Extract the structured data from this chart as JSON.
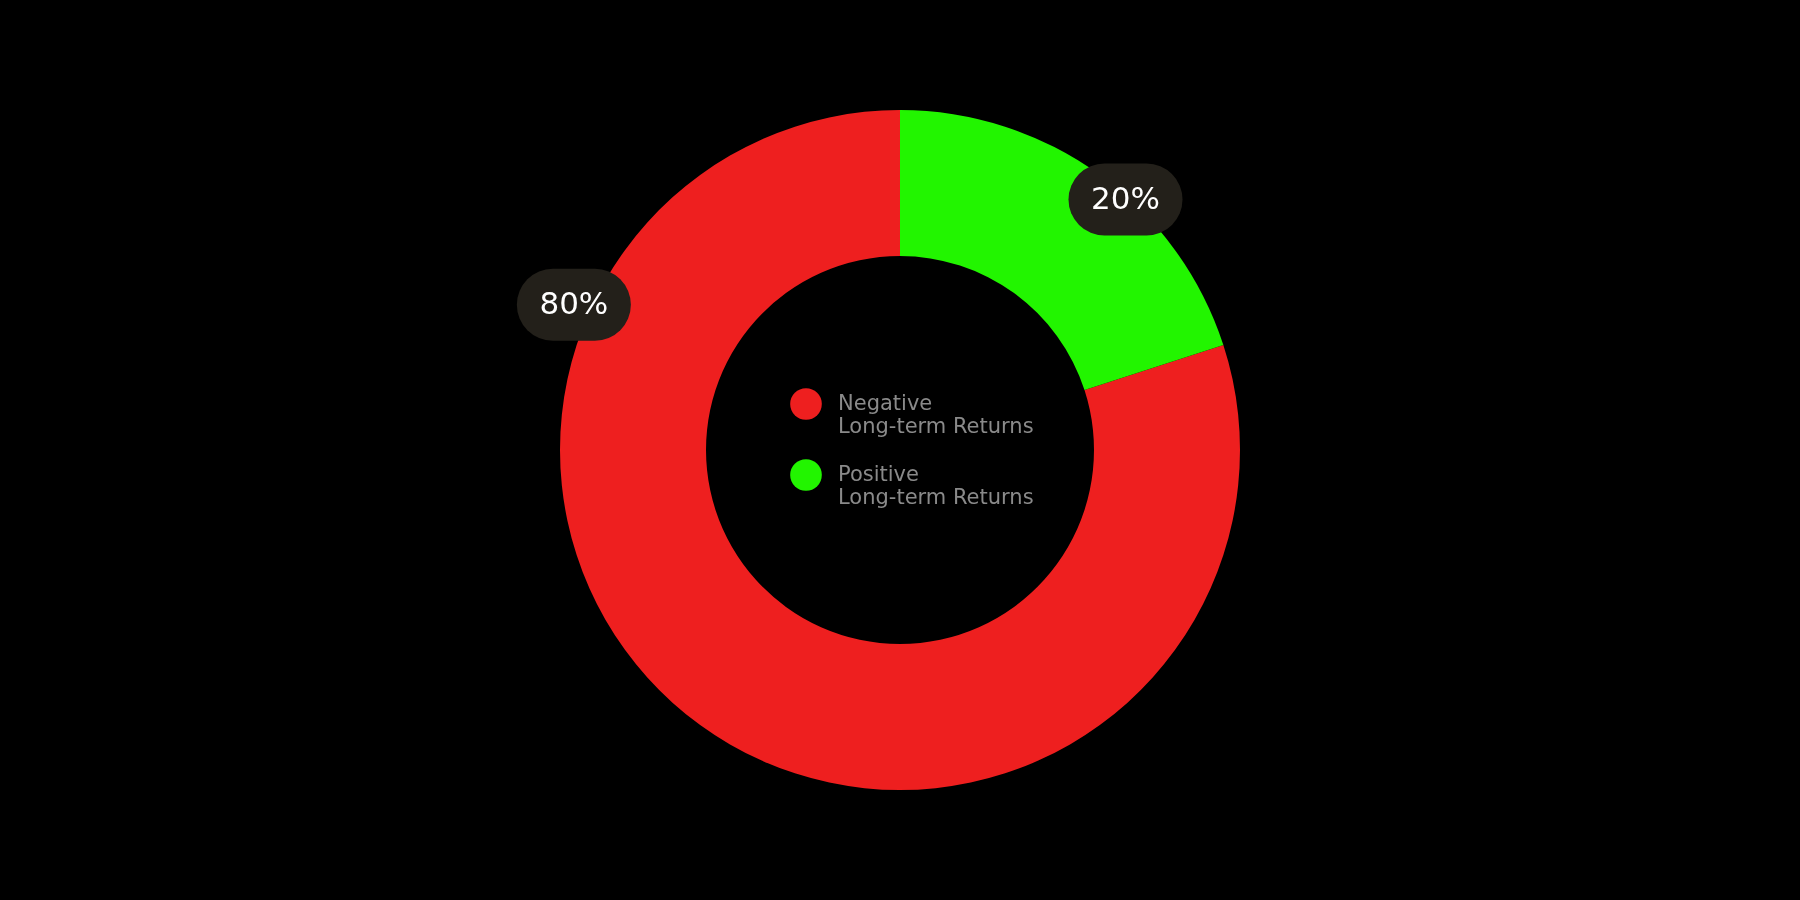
{
  "chart_data": {
    "type": "donut",
    "categories": [
      "Negative Long-term Returns",
      "Positive Long-term Returns"
    ],
    "values": [
      80,
      20
    ],
    "colors": [
      "#ee1f1f",
      "#22f500"
    ],
    "value_labels": [
      "80%",
      "20%"
    ],
    "legend": "center"
  }
}
